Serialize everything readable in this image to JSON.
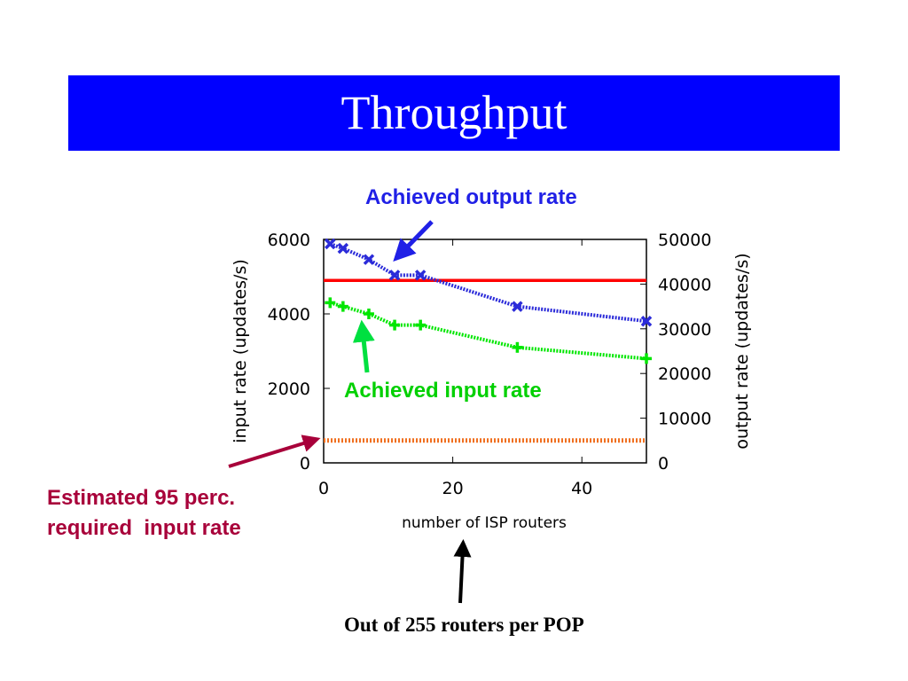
{
  "slide": {
    "title": "Throughput",
    "title_bar_color": "#0000ff"
  },
  "annotations": {
    "output_label": "Achieved output rate",
    "input_label": "Achieved input rate",
    "required_label_line1": "Estimated 95 perc.",
    "required_label_line2": "required  input rate",
    "footnote": "Out of 255 routers per POP"
  },
  "chart_data": {
    "type": "line",
    "xlabel": "number of ISP routers",
    "ylabel_left": "input rate (updates/s)",
    "ylabel_right": "output rate (updates/s)",
    "xlim": [
      0,
      50
    ],
    "ylim_left": [
      0,
      6000
    ],
    "ylim_right": [
      0,
      50000
    ],
    "x_ticks": [
      0,
      20,
      40
    ],
    "y_ticks_left": [
      0,
      2000,
      4000,
      6000
    ],
    "y_ticks_right": [
      0,
      10000,
      20000,
      30000,
      40000,
      50000
    ],
    "grid": false,
    "series": [
      {
        "key": "output",
        "axis": "right",
        "color": "#2b2bd9",
        "marker": "x",
        "x": [
          1,
          3,
          7,
          11,
          15,
          30,
          50
        ],
        "y": [
          49000,
          48000,
          45500,
          42000,
          42000,
          35000,
          31700
        ]
      },
      {
        "key": "input",
        "axis": "left",
        "color": "#00e600",
        "marker": "+",
        "x": [
          1,
          3,
          7,
          11,
          15,
          30,
          50
        ],
        "y": [
          4300,
          4200,
          4000,
          3700,
          3700,
          3100,
          2800
        ]
      }
    ],
    "reference_lines": [
      {
        "key": "red-line",
        "axis": "left",
        "y": 4900,
        "color": "#ff0000",
        "style": "solid"
      },
      {
        "key": "required-rate",
        "axis": "left",
        "y": 600,
        "color": "#f07020",
        "style": "dotted"
      }
    ]
  }
}
